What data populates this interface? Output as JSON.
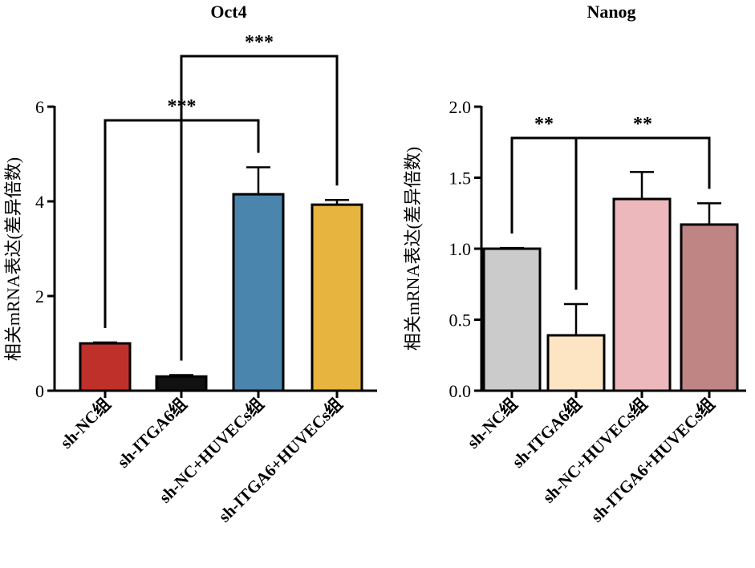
{
  "chart_data": [
    {
      "type": "bar",
      "title": "Oct4",
      "ylabel": "相关mRNA表达(差异倍数)",
      "xlabel": "",
      "ylim": [
        0,
        6
      ],
      "yticks": [
        "0",
        "2",
        "4",
        "6"
      ],
      "ytick_values": [
        0,
        2,
        4,
        6
      ],
      "categories": [
        "sh-NC组",
        "sh-ITGA6组",
        "sh-NC+HUVECs组",
        "sh-ITGA6+HUVECs组"
      ],
      "values": [
        1.0,
        0.3,
        4.15,
        3.93
      ],
      "errors": [
        0.02,
        0.03,
        0.57,
        0.1
      ],
      "colors": [
        "#c0302a",
        "#111111",
        "#4a85ae",
        "#e7b53f"
      ],
      "significance": [
        {
          "from": 0,
          "to": 2,
          "label": "***"
        },
        {
          "from": 1,
          "to": 3,
          "label": "***"
        }
      ]
    },
    {
      "type": "bar",
      "title": "Nanog",
      "ylabel": "相关mRNA表达(差异倍数)",
      "xlabel": "",
      "ylim": [
        0,
        2.0
      ],
      "yticks": [
        "0.0",
        "0.5",
        "1.0",
        "1.5",
        "2.0"
      ],
      "ytick_values": [
        0,
        0.5,
        1.0,
        1.5,
        2.0
      ],
      "categories": [
        "sh-NC组",
        "sh-ITGA6组",
        "sh-NC+HUVECs组",
        "sh-ITGA6+HUVECs组"
      ],
      "values": [
        1.0,
        0.39,
        1.35,
        1.17
      ],
      "errors": [
        0.005,
        0.22,
        0.19,
        0.15
      ],
      "colors": [
        "#cbcbcb",
        "#fde5c4",
        "#ecb8bc",
        "#bf8585"
      ],
      "significance": [
        {
          "from": 0,
          "to": 1,
          "label": "**"
        },
        {
          "from": 1,
          "to": 3,
          "label": "**"
        }
      ]
    }
  ]
}
